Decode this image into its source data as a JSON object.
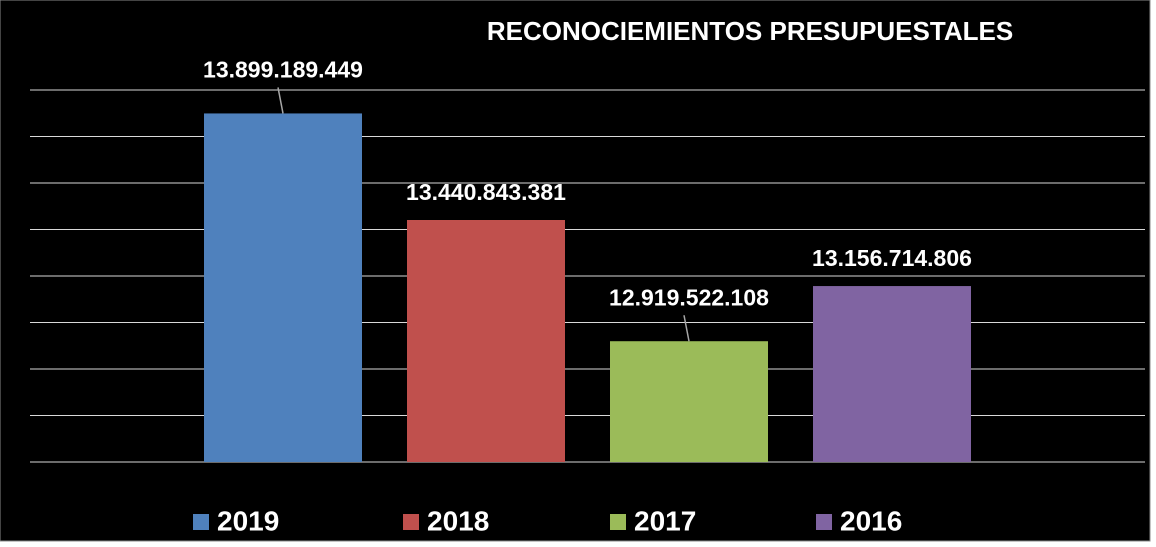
{
  "chart_data": {
    "type": "bar",
    "title": "RECONOCIEMIENTOS PRESUPUESTALES",
    "categories": [
      "2019",
      "2018",
      "2017",
      "2016"
    ],
    "values": [
      13899189449,
      13440843381,
      12919522108,
      13156714806
    ],
    "value_labels": [
      "13.899.189.449",
      "13.440.843.381",
      "12.919.522.108",
      "13.156.714.806"
    ],
    "colors": [
      "#4f81bd",
      "#c0504d",
      "#9bbb59",
      "#8064a2"
    ],
    "ylim": [
      12400000000,
      14000000000
    ],
    "yticks": [
      12400000000,
      12600000000,
      12800000000,
      13000000000,
      13200000000,
      13400000000,
      13600000000,
      13800000000,
      14000000000
    ],
    "grid": true,
    "legend": "bottom"
  }
}
